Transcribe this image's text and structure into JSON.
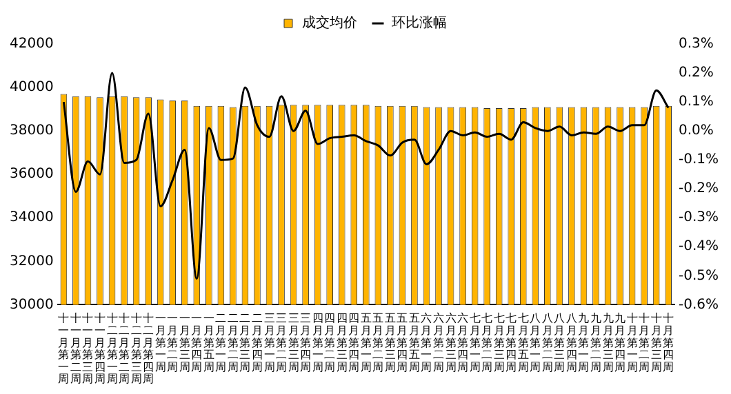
{
  "chart_data": {
    "type": "bar",
    "legend": "top",
    "grid": false,
    "marker": "none",
    "line_style": "solid",
    "categories": [
      "十一月第一周",
      "十一月第二周",
      "十一月第三周",
      "十一月第四周",
      "十二月第一周",
      "十二月第二周",
      "十二月第三周",
      "十二月第四周",
      "一月第一周",
      "一月第二周",
      "一月第三周",
      "一月第四周",
      "一月第五周",
      "二月第一周",
      "二月第二周",
      "二月第三周",
      "二月第四周",
      "三月第一周",
      "三月第二周",
      "三月第三周",
      "三月第四周",
      "四月第一周",
      "四月第二周",
      "四月第三周",
      "四月第四周",
      "五月第一周",
      "五月第二周",
      "五月第三周",
      "五月第四周",
      "五月第五周",
      "六月第一周",
      "六月第二周",
      "六月第三周",
      "六月第四周",
      "七月第一周",
      "七月第二周",
      "七月第三周",
      "七月第四周",
      "七月第五周",
      "八月第一周",
      "八月第二周",
      "八月第三周",
      "八月第四周",
      "九月第一周",
      "九月第二周",
      "九月第三周",
      "九月第四周",
      "十月第一周",
      "十月第二周",
      "十月第三周",
      "十月第四周"
    ],
    "series": [
      {
        "name": "成交均价",
        "color": "#ffb400",
        "values": [
          39700,
          39600,
          39600,
          39550,
          39600,
          39600,
          39550,
          39550,
          39450,
          39400,
          39400,
          39150,
          39150,
          39150,
          39100,
          39150,
          39150,
          39150,
          39200,
          39200,
          39200,
          39200,
          39200,
          39200,
          39200,
          39200,
          39150,
          39150,
          39150,
          39150,
          39100,
          39100,
          39100,
          39100,
          39100,
          39050,
          39050,
          39050,
          39050,
          39100,
          39100,
          39100,
          39100,
          39100,
          39100,
          39100,
          39100,
          39100,
          39100,
          39150,
          39150
        ]
      },
      {
        "name": "环比涨幅",
        "type": "line",
        "axis": "y2",
        "color": "#000000",
        "values": [
          0.1,
          -0.21,
          -0.105,
          -0.15,
          0.2,
          -0.11,
          -0.1,
          0.06,
          -0.26,
          -0.17,
          -0.065,
          -0.51,
          0.01,
          -0.1,
          -0.095,
          0.15,
          0.02,
          -0.02,
          0.12,
          0.0,
          0.07,
          -0.045,
          -0.025,
          -0.02,
          -0.015,
          -0.035,
          -0.05,
          -0.085,
          -0.04,
          -0.03,
          -0.115,
          -0.065,
          0.0,
          -0.015,
          -0.005,
          -0.02,
          -0.01,
          -0.03,
          0.03,
          0.01,
          0.0,
          0.015,
          -0.015,
          -0.005,
          -0.01,
          0.015,
          0.0,
          0.02,
          0.02,
          0.14,
          0.08
        ]
      }
    ],
    "ylim": [
      30000,
      42000
    ],
    "yticks": [
      30000,
      32000,
      34000,
      36000,
      38000,
      40000,
      42000
    ],
    "y2lim": [
      -0.6,
      0.3
    ],
    "y2ticks": [
      {
        "value": -0.6,
        "label": "-0.6%"
      },
      {
        "value": -0.5,
        "label": "-0.5%"
      },
      {
        "value": -0.4,
        "label": "-0.4%"
      },
      {
        "value": -0.3,
        "label": "-0.3%"
      },
      {
        "value": -0.2,
        "label": "-0.2%"
      },
      {
        "value": -0.1,
        "label": "-0.1%"
      },
      {
        "value": 0,
        "label": "0.0%"
      },
      {
        "value": 0.1,
        "label": "0.1%"
      },
      {
        "value": 0.2,
        "label": "0.2%"
      },
      {
        "value": 0.3,
        "label": "0.3%"
      }
    ]
  }
}
